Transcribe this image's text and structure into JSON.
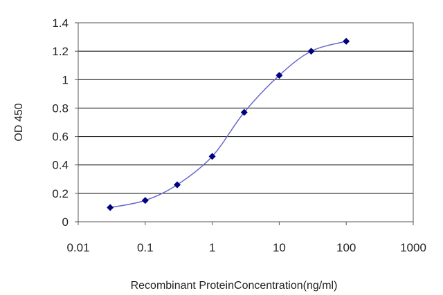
{
  "chart_data": {
    "type": "line",
    "title": "",
    "xlabel": "Recombinant ProteinConcentration(ng/ml)",
    "ylabel": "OD 450",
    "x_scale": "log",
    "xlim": [
      0.01,
      1000
    ],
    "ylim": [
      0,
      1.4
    ],
    "x_ticks": [
      "0.01",
      "0.1",
      "1",
      "10",
      "100",
      "1000"
    ],
    "y_ticks": [
      "0",
      "0.2",
      "0.4",
      "0.6",
      "0.8",
      "1",
      "1.2",
      "1.4"
    ],
    "grid": "horizontal",
    "series": [
      {
        "x": [
          0.03,
          0.1,
          0.3,
          1,
          3,
          10,
          30,
          100
        ],
        "y": [
          0.1,
          0.15,
          0.26,
          0.46,
          0.77,
          1.03,
          1.2,
          1.27
        ]
      }
    ],
    "colors": {
      "line": "#6666cc",
      "marker": "#000080",
      "grid": "#000000"
    }
  }
}
